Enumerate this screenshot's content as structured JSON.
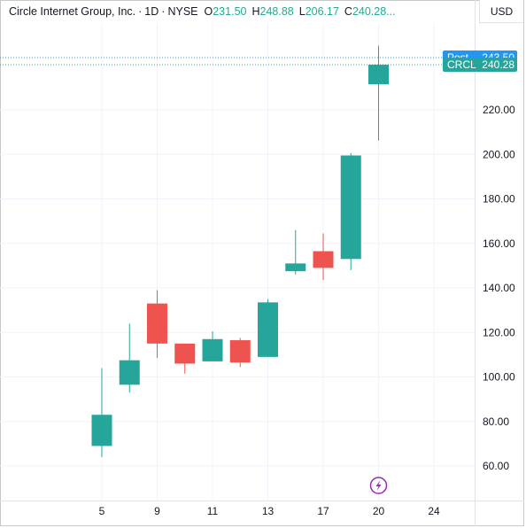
{
  "header": {
    "title": "Circle Internet Group, Inc.",
    "interval": "1D",
    "exchange": "NYSE",
    "open_label": "O",
    "open": "231.50",
    "high_label": "H",
    "high": "248.88",
    "low_label": "L",
    "low": "206.17",
    "close_label": "C",
    "close": "240.28..."
  },
  "currency_button": "USD",
  "badges": {
    "post": {
      "label": "Post",
      "value": "243.50",
      "price": 243.5
    },
    "last": {
      "label": "CRCL",
      "value": "240.28",
      "price": 240.28
    }
  },
  "colors": {
    "up": "#26a69a",
    "down": "#ef5350",
    "post_badge": "#2196f3",
    "event_icon": "#9c27b0",
    "grid": "#f0f3fa"
  },
  "chart_data": {
    "type": "candlestick",
    "y_ticks": [
      "60.00",
      "80.00",
      "100.00",
      "120.00",
      "140.00",
      "160.00",
      "180.00",
      "200.00",
      "220.00"
    ],
    "y_tick_values": [
      60,
      80,
      100,
      120,
      140,
      160,
      180,
      200,
      220
    ],
    "x_ticks": [
      "5",
      "9",
      "11",
      "13",
      "17",
      "20",
      "24"
    ],
    "x_tick_slots": [
      0,
      2,
      4,
      6,
      8,
      10,
      12
    ],
    "ylim": [
      50,
      260
    ],
    "candles": [
      {
        "slot": 0,
        "open": 69,
        "high": 104,
        "low": 64,
        "close": 83
      },
      {
        "slot": 1,
        "open": 96.5,
        "high": 124,
        "low": 93,
        "close": 107.5
      },
      {
        "slot": 2,
        "open": 133,
        "high": 139,
        "low": 108.5,
        "close": 115
      },
      {
        "slot": 3,
        "open": 115,
        "high": 115,
        "low": 101.5,
        "close": 106
      },
      {
        "slot": 4,
        "open": 107,
        "high": 120.5,
        "low": 107,
        "close": 117
      },
      {
        "slot": 5,
        "open": 116.5,
        "high": 117.5,
        "low": 104.5,
        "close": 106.5
      },
      {
        "slot": 6,
        "open": 109,
        "high": 135,
        "low": 109,
        "close": 133.5
      },
      {
        "slot": 7,
        "open": 147.5,
        "high": 166,
        "low": 146,
        "close": 151
      },
      {
        "slot": 8,
        "open": 156.5,
        "high": 164.5,
        "low": 143.5,
        "close": 149
      },
      {
        "slot": 9,
        "open": 153,
        "high": 200.5,
        "low": 148,
        "close": 199.5
      },
      {
        "slot": 10,
        "open": 231.5,
        "high": 248.88,
        "low": 206.17,
        "close": 240.28
      }
    ],
    "event_marker_slot": 10
  }
}
